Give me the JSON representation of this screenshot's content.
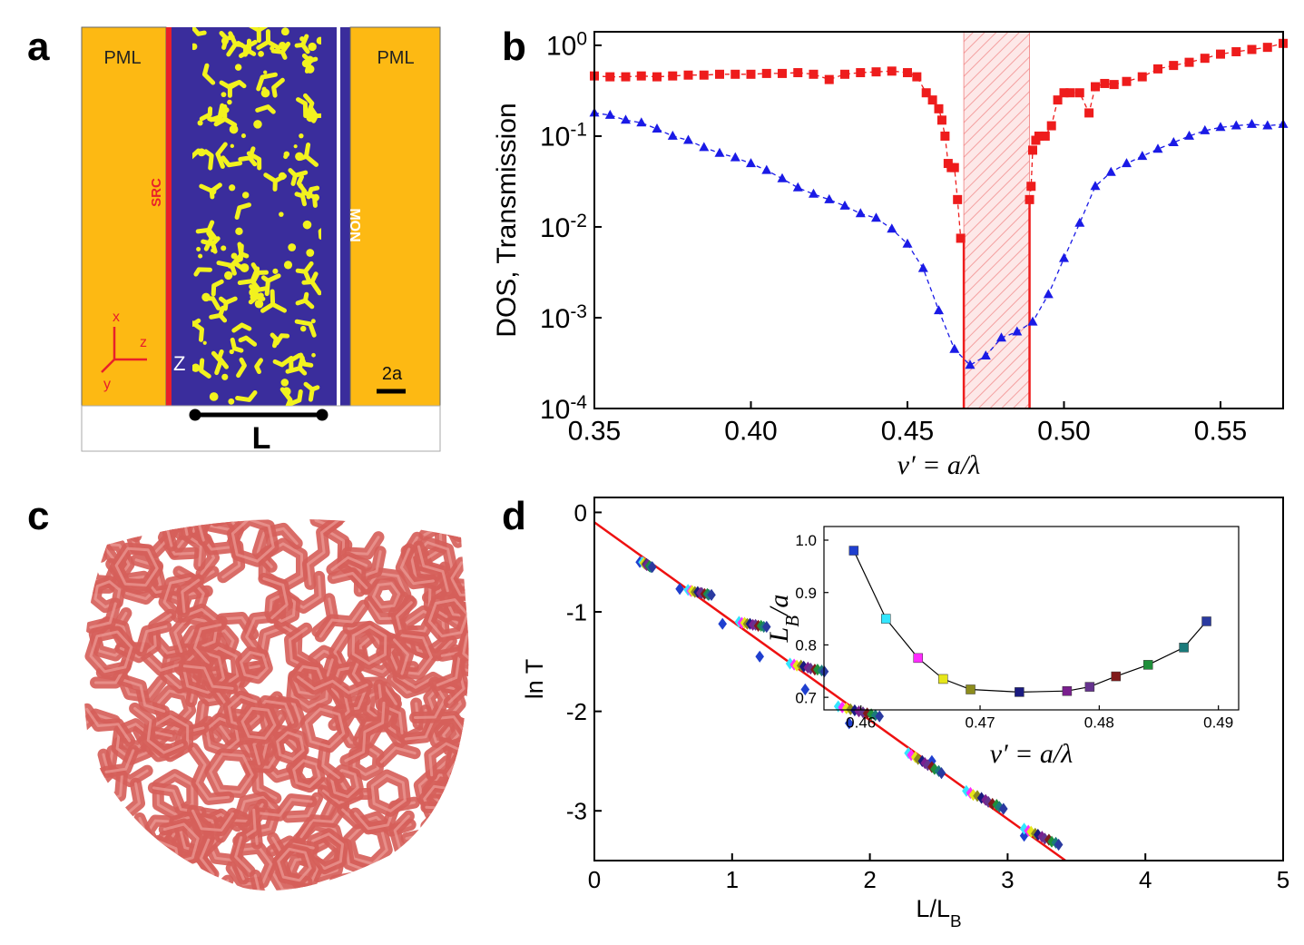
{
  "panel_labels": [
    "a",
    "b",
    "c",
    "d"
  ],
  "schematic": {
    "left_region": "PML",
    "right_region": "PML",
    "source": "SRC",
    "monitor": "MON",
    "axis_x": "x",
    "axis_y": "y",
    "axis_z": "z",
    "z_label": "Z",
    "scale_bar": "2a",
    "length": "L"
  },
  "chart_data": [
    {
      "type": "line",
      "log_y": true,
      "xlabel": "ν′ = a/λ",
      "ylabel": "DOS, Transmission",
      "xlim": [
        0.35,
        0.57
      ],
      "ylim": [
        0.0001,
        1.41
      ],
      "xticks": [
        0.35,
        {
          "value": 0.4,
          "label": "0.40"
        },
        0.45,
        {
          "value": 0.5,
          "label": "0.50"
        },
        0.55
      ],
      "yticks": [
        {
          "value": 0.0001,
          "label": "10",
          "exponent": "-4"
        },
        {
          "value": 0.001,
          "label": "10",
          "exponent": "-3"
        },
        {
          "value": 0.01,
          "label": "10",
          "exponent": "-2"
        },
        {
          "value": 0.1,
          "label": "10",
          "exponent": "-1"
        },
        {
          "value": 1,
          "label": "10",
          "exponent": "0"
        }
      ],
      "shaded_range": [
        0.468,
        0.489
      ],
      "shaded_color": "#f08080",
      "series": [
        {
          "color": "#ee1c1c",
          "marker": "square",
          "line": true,
          "line_style": "dashed",
          "x": [
            0.35,
            0.355,
            0.36,
            0.365,
            0.37,
            0.375,
            0.38,
            0.385,
            0.39,
            0.395,
            0.4,
            0.405,
            0.41,
            0.415,
            0.42,
            0.425,
            0.43,
            0.435,
            0.44,
            0.445,
            0.45,
            0.453,
            0.456,
            0.458,
            0.46,
            0.461,
            0.462,
            0.463,
            0.464,
            0.465,
            0.466,
            0.467,
            0.478,
            0.489,
            0.4895,
            0.49,
            0.491,
            0.492,
            0.494,
            0.496,
            0.498,
            0.5,
            0.502,
            0.505,
            0.508,
            0.51,
            0.513,
            0.516,
            0.52,
            0.525,
            0.53,
            0.535,
            0.54,
            0.545,
            0.55,
            0.555,
            0.56,
            0.565,
            0.57
          ],
          "values": [
            0.46,
            0.45,
            0.45,
            0.46,
            0.45,
            0.46,
            0.47,
            0.47,
            0.48,
            0.48,
            0.48,
            0.49,
            0.49,
            0.5,
            0.48,
            0.42,
            0.48,
            0.5,
            0.51,
            0.52,
            0.5,
            0.45,
            0.3,
            0.25,
            0.2,
            0.15,
            0.1,
            0.05,
            0.045,
            0.045,
            0.02,
            0.0075,
            null,
            0.02,
            0.028,
            0.07,
            0.09,
            0.1,
            0.1,
            0.13,
            0.25,
            0.3,
            0.3,
            0.3,
            0.18,
            0.35,
            0.38,
            0.37,
            0.4,
            0.45,
            0.55,
            0.6,
            0.65,
            0.72,
            0.8,
            0.85,
            0.9,
            0.95,
            1.05
          ]
        },
        {
          "color": "#1a1ae6",
          "marker": "triangle",
          "line": true,
          "line_style": "dashed",
          "x": [
            0.35,
            0.355,
            0.36,
            0.365,
            0.37,
            0.375,
            0.38,
            0.385,
            0.39,
            0.395,
            0.4,
            0.405,
            0.41,
            0.415,
            0.42,
            0.425,
            0.43,
            0.435,
            0.44,
            0.445,
            0.45,
            0.455,
            0.46,
            0.465,
            0.47,
            0.475,
            0.48,
            0.485,
            0.49,
            0.495,
            0.5,
            0.505,
            0.51,
            0.515,
            0.52,
            0.525,
            0.53,
            0.535,
            0.54,
            0.545,
            0.55,
            0.555,
            0.56,
            0.565,
            0.57
          ],
          "values": [
            0.18,
            0.17,
            0.15,
            0.14,
            0.12,
            0.1,
            0.09,
            0.075,
            0.065,
            0.058,
            0.05,
            0.042,
            0.034,
            0.027,
            0.023,
            0.02,
            0.017,
            0.014,
            0.0125,
            0.0095,
            0.0065,
            0.0035,
            0.0012,
            0.00045,
            0.0003,
            0.00038,
            0.0006,
            0.0007,
            0.0009,
            0.0018,
            0.0045,
            0.011,
            0.028,
            0.04,
            0.05,
            0.06,
            0.072,
            0.085,
            0.1,
            0.115,
            0.125,
            0.13,
            0.135,
            0.13,
            0.135
          ]
        }
      ]
    },
    {
      "type": "scatter",
      "xlabel": {
        "text": "L/L",
        "sub": "B"
      },
      "ylabel": "ln T",
      "xlim": [
        0,
        5
      ],
      "ylim": [
        -3.5,
        0.15
      ],
      "xticks": [
        0,
        1,
        2,
        3,
        4,
        5
      ],
      "yticks": [
        -3,
        -2,
        -1,
        0
      ],
      "fit": {
        "x": [
          0,
          3.42
        ],
        "y": [
          -0.1,
          -3.5
        ],
        "color": "#ee1111"
      },
      "series": [
        {
          "color": "#1f3fcf",
          "marker": "diamond",
          "x": [
            0.33,
            0.62,
            0.93,
            1.2,
            1.53,
            1.85,
            2.45,
            3.12
          ],
          "values": [
            -0.5,
            -0.77,
            -1.12,
            -1.45,
            -1.78,
            -2.12,
            -2.5,
            -3.25
          ]
        },
        {
          "color": "#33e6ff",
          "marker": "diamond",
          "x": [
            0.35,
            0.68,
            1.05,
            1.42,
            1.77,
            2.28,
            2.7,
            3.12
          ],
          "values": [
            -0.5,
            -0.78,
            -1.1,
            -1.52,
            -1.95,
            -2.42,
            -2.8,
            -3.18
          ]
        },
        {
          "color": "#ff2cff",
          "marker": "diamond",
          "x": [
            0.36,
            0.7,
            1.07,
            1.45,
            1.8,
            2.3,
            2.73,
            3.15
          ],
          "values": [
            -0.51,
            -0.79,
            -1.11,
            -1.53,
            -1.96,
            -2.44,
            -2.82,
            -3.2
          ]
        },
        {
          "color": "#e6e61a",
          "marker": "diamond",
          "x": [
            0.36,
            0.71,
            1.09,
            1.47,
            1.83,
            2.33,
            2.75,
            3.17
          ],
          "values": [
            -0.51,
            -0.79,
            -1.11,
            -1.54,
            -1.97,
            -2.46,
            -2.84,
            -3.21
          ]
        },
        {
          "color": "#8c8c1c",
          "marker": "diamond",
          "x": [
            0.37,
            0.73,
            1.11,
            1.5,
            1.86,
            2.35,
            2.78,
            3.2
          ],
          "values": [
            -0.52,
            -0.8,
            -1.12,
            -1.54,
            -1.98,
            -2.48,
            -2.85,
            -3.23
          ]
        },
        {
          "color": "#1a1a80",
          "marker": "diamond",
          "x": [
            0.38,
            0.75,
            1.13,
            1.52,
            1.89,
            2.38,
            2.81,
            3.22
          ],
          "values": [
            -0.52,
            -0.8,
            -1.12,
            -1.55,
            -1.99,
            -2.5,
            -2.87,
            -3.24
          ]
        },
        {
          "color": "#7a1f8f",
          "marker": "diamond",
          "x": [
            0.38,
            0.77,
            1.15,
            1.55,
            1.92,
            2.4,
            2.84,
            3.25
          ],
          "values": [
            -0.53,
            -0.81,
            -1.13,
            -1.56,
            -2.0,
            -2.52,
            -2.89,
            -3.26
          ]
        },
        {
          "color": "#66338f",
          "marker": "diamond",
          "x": [
            0.39,
            0.78,
            1.17,
            1.57,
            1.95,
            2.42,
            2.86,
            3.27
          ],
          "values": [
            -0.53,
            -0.81,
            -1.13,
            -1.57,
            -2.01,
            -2.54,
            -2.91,
            -3.28
          ]
        },
        {
          "color": "#801a1a",
          "marker": "diamond",
          "x": [
            0.4,
            0.8,
            1.19,
            1.6,
            1.98,
            2.45,
            2.89,
            3.3
          ],
          "values": [
            -0.54,
            -0.82,
            -1.14,
            -1.58,
            -2.02,
            -2.56,
            -2.93,
            -3.29
          ]
        },
        {
          "color": "#1f8f3a",
          "marker": "diamond",
          "x": [
            0.4,
            0.82,
            1.21,
            1.62,
            2.01,
            2.47,
            2.92,
            3.32
          ],
          "values": [
            -0.54,
            -0.82,
            -1.14,
            -1.58,
            -2.03,
            -2.58,
            -2.94,
            -3.31
          ]
        },
        {
          "color": "#1a7a7a",
          "marker": "diamond",
          "x": [
            0.41,
            0.83,
            1.23,
            1.65,
            2.04,
            2.5,
            2.94,
            3.35
          ],
          "values": [
            -0.55,
            -0.83,
            -1.15,
            -1.59,
            -2.04,
            -2.6,
            -2.96,
            -3.32
          ]
        },
        {
          "color": "#2a3aa0",
          "marker": "diamond",
          "x": [
            0.42,
            0.85,
            1.25,
            1.67,
            2.07,
            2.52,
            2.97,
            3.37
          ],
          "values": [
            -0.55,
            -0.83,
            -1.15,
            -1.6,
            -2.05,
            -2.62,
            -2.98,
            -3.34
          ]
        }
      ]
    },
    {
      "type": "line",
      "xlabel": "ν′ = a/λ",
      "ylabel": {
        "text": "L",
        "sub": "B",
        "tail": "/a"
      },
      "xlim": [
        0.4569,
        0.4917
      ],
      "ylim": [
        0.676,
        1.026
      ],
      "xticks": [
        0.46,
        0.47,
        0.48,
        0.49
      ],
      "yticks": [
        0.7,
        0.8,
        0.9,
        {
          "value": 1,
          "label": "1.0"
        }
      ],
      "series": [
        {
          "color": "#000000",
          "marker": "square",
          "line": true,
          "point_colors": [
            "#1f3fcf",
            "#33e6ff",
            "#ff2cff",
            "#e6e61a",
            "#8c8c1c",
            "#1a1a80",
            "#7a1f8f",
            "#66338f",
            "#801a1a",
            "#1f8f3a",
            "#1a7a7a",
            "#2a3aa0"
          ],
          "x": [
            0.4594,
            0.4621,
            0.4648,
            0.4669,
            0.4692,
            0.4733,
            0.4773,
            0.4792,
            0.4814,
            0.4841,
            0.4871,
            0.489
          ],
          "values": [
            0.98,
            0.85,
            0.775,
            0.735,
            0.715,
            0.71,
            0.712,
            0.72,
            0.74,
            0.762,
            0.795,
            0.845
          ]
        }
      ]
    }
  ]
}
